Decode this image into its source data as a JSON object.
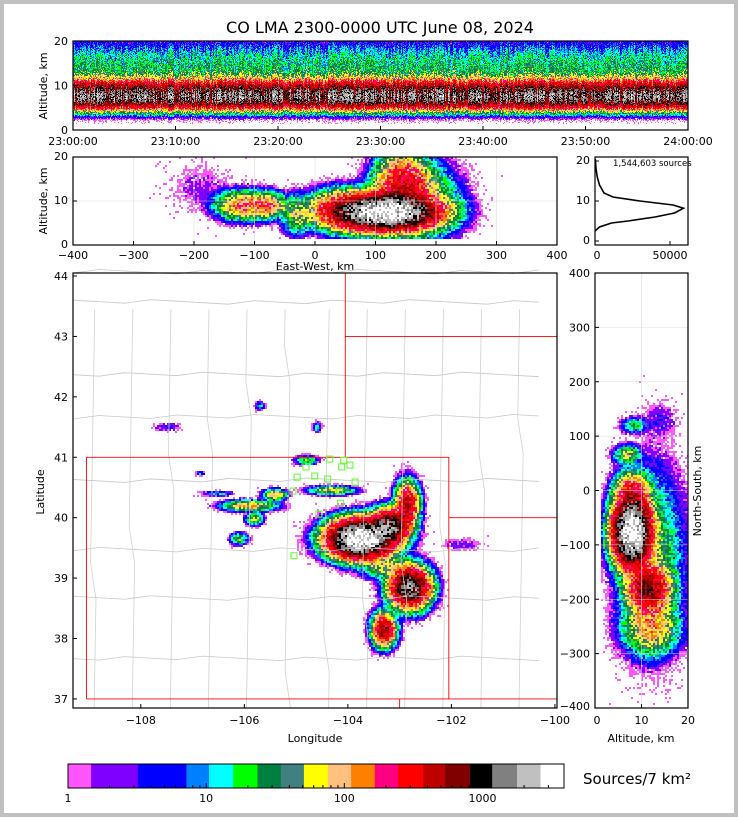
{
  "chart_data": [
    {
      "id": "time_height",
      "type": "heatmap",
      "title": "CO LMA 2300-0000 UTC June 08, 2024",
      "xlabel": "",
      "ylabel": "Altitude, km",
      "xlim_minutes": [
        0,
        60
      ],
      "ylim": [
        0,
        20
      ],
      "xticks": [
        {
          "v": 0,
          "label": "23:00:00"
        },
        {
          "v": 10,
          "label": "23:10:00"
        },
        {
          "v": 20,
          "label": "23:20:00"
        },
        {
          "v": 30,
          "label": "23:30:00"
        },
        {
          "v": 40,
          "label": "23:40:00"
        },
        {
          "v": 50,
          "label": "23:50:00"
        },
        {
          "v": 60,
          "label": "24:00:00"
        }
      ],
      "yticks": [
        0,
        10,
        20
      ],
      "profile": {
        "peak_altitude_km": 7.5,
        "core_width_km": 2.4,
        "peak_density": 1400,
        "upper_tail_center_km": 13,
        "upper_tail_width_km": 5,
        "upper_tail_density": 25
      }
    },
    {
      "id": "east_west_altitude",
      "type": "heatmap",
      "xlabel": "East-West, km",
      "ylabel": "Altitude, km",
      "xlim": [
        -400,
        400
      ],
      "ylim": [
        0,
        20
      ],
      "xticks": [
        -400,
        -300,
        -200,
        -100,
        0,
        100,
        200,
        300,
        400
      ],
      "yticks": [
        0,
        10,
        20
      ],
      "grid": true,
      "cells": [
        {
          "x": 115,
          "z": 7.5,
          "sx": 55,
          "sz": 2.6,
          "a": 4000
        },
        {
          "x": 145,
          "z": 13,
          "sx": 30,
          "sz": 5,
          "a": 400
        },
        {
          "x": 170,
          "z": 10,
          "sx": 45,
          "sz": 6,
          "a": 80
        },
        {
          "x": 40,
          "z": 8,
          "sx": 35,
          "sz": 3,
          "a": 200
        },
        {
          "x": -120,
          "z": 9,
          "sx": 30,
          "sz": 2.2,
          "a": 150
        },
        {
          "x": -80,
          "z": 9,
          "sx": 22,
          "sz": 2,
          "a": 150
        },
        {
          "x": -30,
          "z": 7,
          "sx": 18,
          "sz": 3,
          "a": 60
        },
        {
          "x": -190,
          "z": 13,
          "sx": 40,
          "sz": 4,
          "a": 2
        }
      ]
    },
    {
      "id": "altitude_histogram",
      "type": "line",
      "annotation": "1,544,603 sources",
      "xlim": [
        0,
        57000
      ],
      "ylim": [
        -1,
        21
      ],
      "xticks": [
        0,
        50000
      ],
      "yticks": [
        0,
        10,
        20
      ],
      "x": [
        0,
        3000,
        11000,
        22000,
        40000,
        53000,
        59000,
        52000,
        30000,
        12000,
        6000,
        3000,
        1500,
        700,
        200
      ],
      "y": [
        2.5,
        3.5,
        4.5,
        5.0,
        6.0,
        7.0,
        8.2,
        9.0,
        10.0,
        11.0,
        12.0,
        14.0,
        16.0,
        18.0,
        20.5
      ]
    },
    {
      "id": "plan_view",
      "type": "heatmap",
      "xlabel": "Longitude",
      "ylabel": "Latitude",
      "xlim": [
        -109.31,
        -99.96
      ],
      "ylim": [
        36.85,
        44.05
      ],
      "xticks": [
        {
          "v": -108,
          "label": "−108"
        },
        {
          "v": -106,
          "label": "−106"
        },
        {
          "v": -104,
          "label": "−104"
        },
        {
          "v": -102,
          "label": "−102"
        },
        {
          "v": -100,
          "label": "−100"
        }
      ],
      "yticks": [
        37,
        38,
        39,
        40,
        41,
        42,
        43,
        44
      ],
      "cells": [
        {
          "lon": -103.75,
          "lat": 39.65,
          "slon": 0.4,
          "slat": 0.2,
          "a": 4000
        },
        {
          "lon": -103.2,
          "lat": 39.85,
          "slon": 0.25,
          "slat": 0.18,
          "a": 1500
        },
        {
          "lon": -102.8,
          "lat": 38.85,
          "slon": 0.25,
          "slat": 0.22,
          "a": 1500
        },
        {
          "lon": -103.3,
          "lat": 38.15,
          "slon": 0.15,
          "slat": 0.18,
          "a": 600
        },
        {
          "lon": -102.85,
          "lat": 40.2,
          "slon": 0.15,
          "slat": 0.25,
          "a": 500
        },
        {
          "lon": -104.3,
          "lat": 40.45,
          "slon": 0.3,
          "slat": 0.05,
          "a": 80
        },
        {
          "lon": -105.4,
          "lat": 40.38,
          "slon": 0.15,
          "slat": 0.06,
          "a": 120
        },
        {
          "lon": -105.9,
          "lat": 40.2,
          "slon": 0.35,
          "slat": 0.06,
          "a": 120
        },
        {
          "lon": -105.8,
          "lat": 39.98,
          "slon": 0.12,
          "slat": 0.07,
          "a": 60
        },
        {
          "lon": -106.1,
          "lat": 39.65,
          "slon": 0.12,
          "slat": 0.07,
          "a": 40
        },
        {
          "lon": -106.5,
          "lat": 40.4,
          "slon": 0.2,
          "slat": 0.03,
          "a": 15
        },
        {
          "lon": -104.8,
          "lat": 40.95,
          "slon": 0.15,
          "slat": 0.05,
          "a": 40
        },
        {
          "lon": -104.6,
          "lat": 41.5,
          "slon": 0.06,
          "slat": 0.06,
          "a": 15
        },
        {
          "lon": -105.7,
          "lat": 41.85,
          "slon": 0.07,
          "slat": 0.05,
          "a": 15
        },
        {
          "lon": -106.85,
          "lat": 40.73,
          "slon": 0.06,
          "slat": 0.03,
          "a": 10
        },
        {
          "lon": -107.5,
          "lat": 41.5,
          "slon": 0.2,
          "slat": 0.06,
          "a": 4
        },
        {
          "lon": -101.8,
          "lat": 39.55,
          "slon": 0.3,
          "slat": 0.08,
          "a": 3
        },
        {
          "lon": -103.3,
          "lat": 39.2,
          "slon": 0.3,
          "slat": 0.15,
          "a": 60
        }
      ],
      "stations": [
        {
          "lon": -104.35,
          "lat": 40.97
        },
        {
          "lon": -104.08,
          "lat": 40.95
        },
        {
          "lon": -104.81,
          "lat": 40.84
        },
        {
          "lon": -104.12,
          "lat": 40.84
        },
        {
          "lon": -103.96,
          "lat": 40.87
        },
        {
          "lon": -104.98,
          "lat": 40.67
        },
        {
          "lon": -104.64,
          "lat": 40.69
        },
        {
          "lon": -104.39,
          "lat": 40.64
        },
        {
          "lon": -103.86,
          "lat": 40.59
        },
        {
          "lon": -105.06,
          "lat": 40.44
        },
        {
          "lon": -104.16,
          "lat": 40.44
        },
        {
          "lon": -104.14,
          "lat": 40.24
        },
        {
          "lon": -104.56,
          "lat": 40.06
        },
        {
          "lon": -105.04,
          "lat": 39.37
        }
      ],
      "state_borders_red": [
        [
          [
            -109.05,
            37.0
          ],
          [
            -109.05,
            41.0
          ],
          [
            -102.05,
            41.0
          ],
          [
            -102.05,
            37.0
          ],
          [
            -109.05,
            37.0
          ]
        ],
        [
          [
            -104.05,
            44.05
          ],
          [
            -104.05,
            41.0
          ]
        ],
        [
          [
            -104.05,
            43.0
          ],
          [
            -99.96,
            43.0
          ]
        ],
        [
          [
            -102.05,
            40.0
          ],
          [
            -99.96,
            40.0
          ]
        ],
        [
          [
            -102.05,
            37.0
          ],
          [
            -99.96,
            37.0
          ]
        ],
        [
          [
            -103.0,
            37.0
          ],
          [
            -103.0,
            36.85
          ]
        ]
      ]
    },
    {
      "id": "altitude_north_south",
      "type": "heatmap",
      "xlabel": "Altitude, km",
      "ylabel": "North-South, km",
      "xlim": [
        0,
        20
      ],
      "ylim": [
        -400,
        400
      ],
      "xticks": [
        0,
        10,
        20
      ],
      "yticks": [
        -400,
        -300,
        -200,
        -100,
        0,
        100,
        200,
        300,
        400
      ],
      "grid": true,
      "cells": [
        {
          "z": 8,
          "y": -75,
          "sz": 2.6,
          "sy": 40,
          "a": 4000
        },
        {
          "z": 11.5,
          "y": -180,
          "sz": 3,
          "sy": 30,
          "a": 700
        },
        {
          "z": 12,
          "y": -250,
          "sz": 4,
          "sy": 35,
          "a": 120
        },
        {
          "z": 8,
          "y": -5,
          "sz": 2.5,
          "sy": 25,
          "a": 300
        },
        {
          "z": 7,
          "y": 65,
          "sz": 2,
          "sy": 12,
          "a": 60
        },
        {
          "z": 8.5,
          "y": 120,
          "sz": 2,
          "sy": 10,
          "a": 25
        },
        {
          "z": 12,
          "y": -120,
          "sz": 5,
          "sy": 110,
          "a": 40
        },
        {
          "z": 14,
          "y": 130,
          "sz": 3,
          "sy": 25,
          "a": 3
        }
      ]
    }
  ],
  "colorbar": {
    "label": "Sources/7 km²",
    "tick_labels": [
      {
        "v": 1,
        "label": "1"
      },
      {
        "v": 10,
        "label": "10"
      },
      {
        "v": 100,
        "label": "100"
      },
      {
        "v": 1000,
        "label": "1000"
      }
    ],
    "bounds": [
      1,
      1.47,
      3.2,
      7.2,
      10.5,
      15.7,
      23.5,
      34.7,
      51,
      76,
      112,
      166,
      245,
      372,
      537,
      813,
      1175,
      1778,
      2630,
      3890
    ],
    "colors": [
      "#ff55ff",
      "#8000ff",
      "#0000ff",
      "#0080ff",
      "#00ffff",
      "#00ff00",
      "#008040",
      "#408080",
      "#ffff00",
      "#ffc080",
      "#ff8000",
      "#ff0080",
      "#ff0000",
      "#c00000",
      "#800000",
      "#000000",
      "#808080",
      "#c0c0c0",
      "#ffffff"
    ]
  }
}
